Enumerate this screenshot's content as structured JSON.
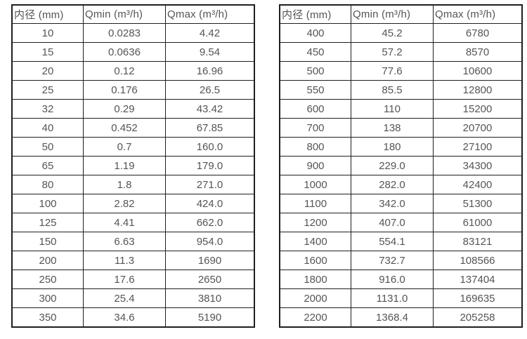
{
  "colors": {
    "background": "#ffffff",
    "border": "#1f1f1f",
    "text": "#555555"
  },
  "tables": [
    {
      "name": "flow-table-small-diameters",
      "columns": [
        "内径 (mm)",
        "Qmin (m³/h)",
        "Qmax (m³/h)"
      ],
      "rows": [
        [
          "10",
          "0.0283",
          "4.42"
        ],
        [
          "15",
          "0.0636",
          "9.54"
        ],
        [
          "20",
          "0.12",
          "16.96"
        ],
        [
          "25",
          "0.176",
          "26.5"
        ],
        [
          "32",
          "0.29",
          "43.42"
        ],
        [
          "40",
          "0.452",
          "67.85"
        ],
        [
          "50",
          "0.7",
          "160.0"
        ],
        [
          "65",
          "1.19",
          "179.0"
        ],
        [
          "80",
          "1.8",
          "271.0"
        ],
        [
          "100",
          "2.82",
          "424.0"
        ],
        [
          "125",
          "4.41",
          "662.0"
        ],
        [
          "150",
          "6.63",
          "954.0"
        ],
        [
          "200",
          "11.3",
          "1690"
        ],
        [
          "250",
          "17.6",
          "2650"
        ],
        [
          "300",
          "25.4",
          "3810"
        ],
        [
          "350",
          "34.6",
          "5190"
        ]
      ]
    },
    {
      "name": "flow-table-large-diameters",
      "columns": [
        "内径 (mm)",
        "Qmin (m³/h)",
        "Qmax (m³/h)"
      ],
      "rows": [
        [
          "400",
          "45.2",
          "6780"
        ],
        [
          "450",
          "57.2",
          "8570"
        ],
        [
          "500",
          "77.6",
          "10600"
        ],
        [
          "550",
          "85.5",
          "12800"
        ],
        [
          "600",
          "110",
          "15200"
        ],
        [
          "700",
          "138",
          "20700"
        ],
        [
          "800",
          "180",
          "27100"
        ],
        [
          "900",
          "229.0",
          "34300"
        ],
        [
          "1000",
          "282.0",
          "42400"
        ],
        [
          "1100",
          "342.0",
          "51300"
        ],
        [
          "1200",
          "407.0",
          "61000"
        ],
        [
          "1400",
          "554.1",
          "83121"
        ],
        [
          "1600",
          "732.7",
          "108566"
        ],
        [
          "1800",
          "916.0",
          "137404"
        ],
        [
          "2000",
          "1131.0",
          "169635"
        ],
        [
          "2200",
          "1368.4",
          "205258"
        ]
      ]
    }
  ]
}
